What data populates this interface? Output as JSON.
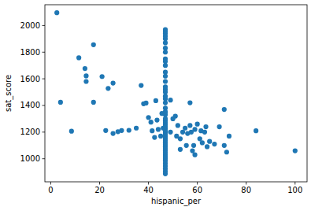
{
  "chart_data": {
    "type": "scatter",
    "x_label": "hispanic_per",
    "y_label": "sat_score",
    "color": "#1f77b4",
    "marker": "circle",
    "x": [
      2.5,
      4,
      8.5,
      11.5,
      14,
      14.5,
      14.5,
      17.5,
      17.5,
      21,
      22.5,
      23.5,
      25.5,
      25.5,
      27.5,
      29,
      32,
      35,
      37,
      38,
      39,
      40,
      41,
      41.5,
      42.5,
      43,
      43.5,
      44,
      45,
      45.5,
      46,
      49,
      49,
      50,
      51,
      51.5,
      52,
      53,
      53,
      54,
      55,
      55.5,
      56,
      57,
      57,
      57.5,
      58,
      58.5,
      59,
      59,
      60,
      61,
      61.5,
      62,
      63,
      63.5,
      64,
      65,
      67,
      69,
      71,
      71,
      72,
      73,
      84,
      100,
      46.9,
      46.9,
      46.9,
      46.9,
      46.9,
      46.9,
      46.9,
      46.9,
      46.9,
      46.9,
      46.9,
      46.9,
      46.9,
      46.9,
      46.9,
      46.9,
      46.9,
      46.9,
      46.9,
      46.9,
      46.9,
      46.9,
      46.9,
      46.9,
      46.9,
      46.9,
      46.9,
      46.9,
      46.9,
      46.9,
      46.9,
      46.9,
      46.9,
      46.9,
      46.9,
      46.9,
      46.9,
      46.9,
      46.9,
      46.9,
      46.9,
      46.9,
      46.9,
      46.9,
      46.9,
      46.9,
      46.9,
      46.9,
      46.9,
      46.9,
      46.9
    ],
    "values": [
      2096,
      1424,
      1207,
      1758,
      1677,
      1622,
      1580,
      1856,
      1424,
      1617,
      1212,
      1528,
      1568,
      1190,
      1203,
      1212,
      1214,
      1230,
      1550,
      1413,
      1418,
      1310,
      1275,
      1210,
      1160,
      1436,
      1290,
      1220,
      1170,
      1340,
      1230,
      1440,
      1200,
      1300,
      1320,
      1170,
      1250,
      1150,
      1070,
      1200,
      1230,
      1100,
      1190,
      1420,
      1250,
      1200,
      1060,
      1100,
      1220,
      1030,
      1260,
      1150,
      1210,
      1120,
      1200,
      1240,
      1090,
      1130,
      1110,
      1240,
      1370,
      1100,
      1050,
      1170,
      1210,
      1060,
      887,
      905,
      925,
      945,
      965,
      985,
      1000,
      1015,
      1030,
      1045,
      1060,
      1075,
      1090,
      1105,
      1120,
      1135,
      1150,
      1165,
      1180,
      1195,
      1210,
      1225,
      1240,
      1255,
      1270,
      1285,
      1300,
      1330,
      1350,
      1380,
      1420,
      1450,
      1470,
      1500,
      1520,
      1540,
      1580,
      1620,
      1650,
      1700,
      1730,
      1750,
      1800,
      1830,
      1870,
      1900,
      1920,
      1940,
      1955,
      1969,
      1350
    ],
    "xlim": [
      -2.4,
      104.9
    ],
    "ylim": [
      827,
      2156
    ],
    "xticks": [
      0,
      20,
      40,
      60,
      80,
      100
    ],
    "yticks": [
      1000,
      1200,
      1400,
      1600,
      1800,
      2000
    ],
    "grid": false
  }
}
